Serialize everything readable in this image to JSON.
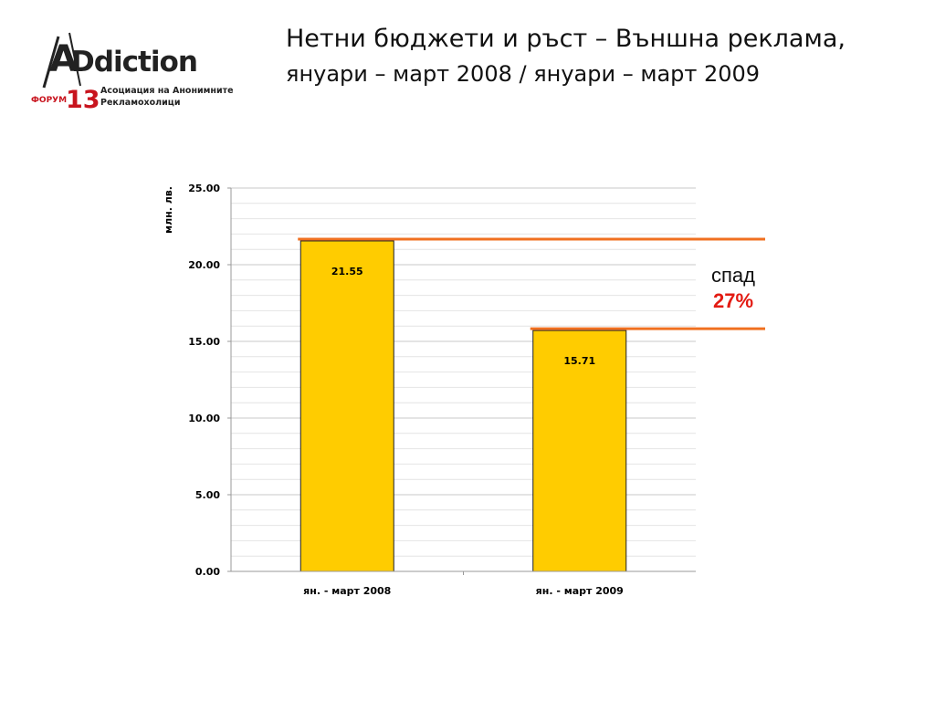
{
  "logo": {
    "wordmark": "ADdiction",
    "forum": "ФОРУМ",
    "number": "13",
    "org_line1": "Асоциация на Анонимните",
    "org_line2": "Рекламохолици"
  },
  "header": {
    "title_main": "Нетни бюджети и ръст – Външна реклама,",
    "title_sub": "януари – март 2008 / януари – март 2009"
  },
  "note": {
    "label": "спад",
    "value": "27%"
  },
  "colors": {
    "bar": "#ffcc00",
    "ref_line": "#f07020",
    "drop": "#e31b13",
    "grid": "#cccccc"
  },
  "chart_data": {
    "type": "bar",
    "categories": [
      "ян. - март 2008",
      "ян. - март 2009"
    ],
    "values": [
      21.55,
      15.71
    ],
    "data_labels": [
      "21.55",
      "15.71"
    ],
    "ylabel": "млн. лв.",
    "xlabel": "",
    "ylim": [
      0,
      25
    ],
    "yticks": [
      "0.00",
      "5.00",
      "10.00",
      "15.00",
      "20.00",
      "25.00"
    ],
    "grid": true,
    "reference_lines": [
      21.55,
      15.71
    ]
  }
}
